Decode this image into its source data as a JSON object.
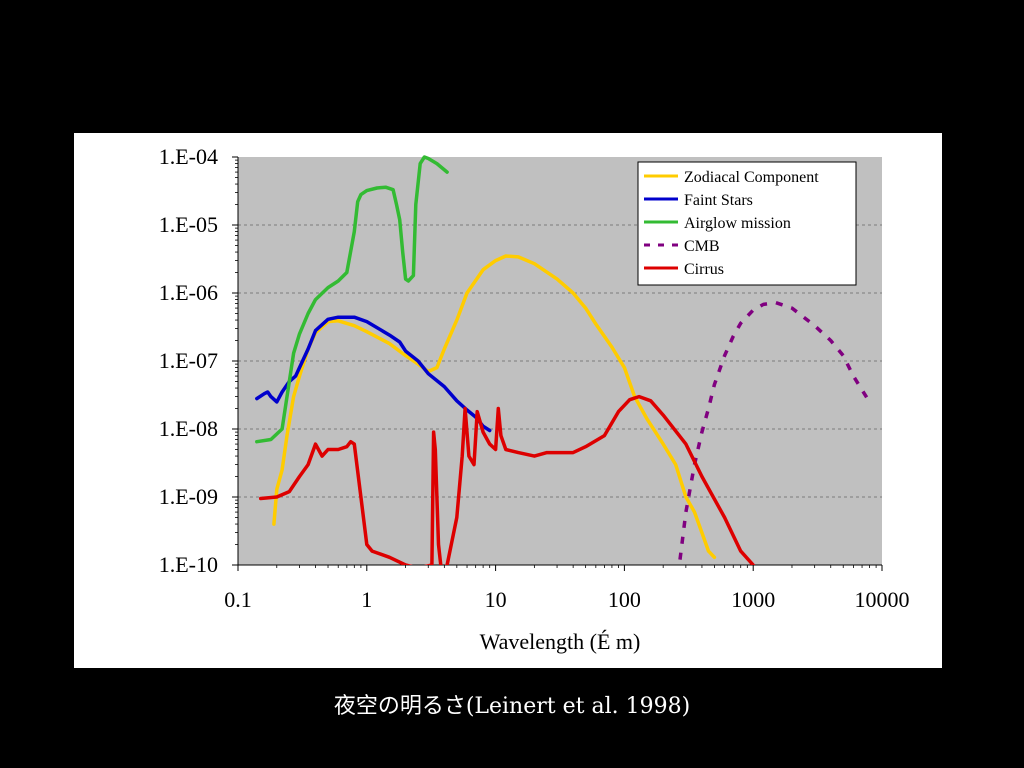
{
  "caption": "夜空の明るさ(Leinert et al. 1998)",
  "chart_data": {
    "type": "line",
    "xscale": "log",
    "yscale": "log",
    "xlim": [
      0.1,
      10000
    ],
    "ylim": [
      1e-10,
      0.0001
    ],
    "xlabel": "Wavelength (É m)",
    "ylabel": "",
    "x_tick_labels": [
      "0.1",
      "1",
      "10",
      "100",
      "1000",
      "10000"
    ],
    "y_tick_labels": [
      "1.E-04",
      "1.E-05",
      "1.E-06",
      "1.E-07",
      "1.E-08",
      "1.E-09",
      "1.E-10"
    ],
    "background": "#c0c0c0",
    "grid": true,
    "legend_position": "top-right",
    "series": [
      {
        "name": "Zodiacal Component",
        "color": "#ffcc00",
        "dash": "solid",
        "points": [
          [
            0.19,
            4e-10
          ],
          [
            0.2,
            1.3e-09
          ],
          [
            0.22,
            2.5e-09
          ],
          [
            0.24,
            8e-09
          ],
          [
            0.27,
            3e-08
          ],
          [
            0.3,
            6e-08
          ],
          [
            0.35,
            1.5e-07
          ],
          [
            0.4,
            2.6e-07
          ],
          [
            0.5,
            3.8e-07
          ],
          [
            0.6,
            3.9e-07
          ],
          [
            0.8,
            3.3e-07
          ],
          [
            1,
            2.7e-07
          ],
          [
            1.5,
            1.8e-07
          ],
          [
            2,
            1.2e-07
          ],
          [
            2.5,
            9e-08
          ],
          [
            3,
            7e-08
          ],
          [
            3.5,
            8e-08
          ],
          [
            4,
            1.5e-07
          ],
          [
            5,
            4e-07
          ],
          [
            6,
            1e-06
          ],
          [
            8,
            2.2e-06
          ],
          [
            10,
            3e-06
          ],
          [
            12,
            3.5e-06
          ],
          [
            15,
            3.4e-06
          ],
          [
            20,
            2.7e-06
          ],
          [
            30,
            1.6e-06
          ],
          [
            40,
            1e-06
          ],
          [
            50,
            6e-07
          ],
          [
            60,
            3.5e-07
          ],
          [
            80,
            1.6e-07
          ],
          [
            100,
            8e-08
          ],
          [
            120,
            3e-08
          ],
          [
            150,
            1.4e-08
          ],
          [
            200,
            6e-09
          ],
          [
            250,
            3e-09
          ],
          [
            300,
            1e-09
          ],
          [
            350,
            6e-10
          ],
          [
            400,
            3e-10
          ],
          [
            450,
            1.6e-10
          ],
          [
            500,
            1.3e-10
          ]
        ]
      },
      {
        "name": "Faint Stars",
        "color": "#0000cc",
        "dash": "solid",
        "points": [
          [
            0.14,
            2.8e-08
          ],
          [
            0.16,
            3.3e-08
          ],
          [
            0.17,
            3.5e-08
          ],
          [
            0.18,
            3e-08
          ],
          [
            0.2,
            2.5e-08
          ],
          [
            0.22,
            3.5e-08
          ],
          [
            0.25,
            5e-08
          ],
          [
            0.28,
            6e-08
          ],
          [
            0.3,
            8e-08
          ],
          [
            0.35,
            1.5e-07
          ],
          [
            0.4,
            2.8e-07
          ],
          [
            0.5,
            4.1e-07
          ],
          [
            0.6,
            4.4e-07
          ],
          [
            0.8,
            4.4e-07
          ],
          [
            1,
            3.8e-07
          ],
          [
            1.5,
            2.4e-07
          ],
          [
            1.8,
            1.9e-07
          ],
          [
            2,
            1.4e-07
          ],
          [
            2.5,
            1e-07
          ],
          [
            3,
            6.5e-08
          ],
          [
            4,
            4.2e-08
          ],
          [
            5,
            2.6e-08
          ],
          [
            6,
            1.9e-08
          ],
          [
            7,
            1.5e-08
          ],
          [
            8,
            1.1e-08
          ],
          [
            9,
            9.5e-09
          ]
        ]
      },
      {
        "name": "Airglow mission",
        "color": "#33bb33",
        "dash": "solid",
        "points": [
          [
            0.14,
            6.5e-09
          ],
          [
            0.18,
            7e-09
          ],
          [
            0.22,
            1e-08
          ],
          [
            0.25,
            5e-08
          ],
          [
            0.27,
            1.3e-07
          ],
          [
            0.3,
            2.5e-07
          ],
          [
            0.35,
            5e-07
          ],
          [
            0.4,
            8e-07
          ],
          [
            0.5,
            1.2e-06
          ],
          [
            0.6,
            1.5e-06
          ],
          [
            0.7,
            2e-06
          ],
          [
            0.8,
            8e-06
          ],
          [
            0.85,
            2.2e-05
          ],
          [
            0.9,
            2.8e-05
          ],
          [
            1,
            3.2e-05
          ],
          [
            1.2,
            3.5e-05
          ],
          [
            1.4,
            3.6e-05
          ],
          [
            1.6,
            3.3e-05
          ],
          [
            1.7,
            2e-05
          ],
          [
            1.8,
            1.2e-05
          ],
          [
            1.9,
            4e-06
          ],
          [
            2,
            1.6e-06
          ],
          [
            2.1,
            1.5e-06
          ],
          [
            2.3,
            1.8e-06
          ],
          [
            2.4,
            2e-05
          ],
          [
            2.6,
            8e-05
          ],
          [
            2.8,
            0.0001
          ],
          [
            3,
            9.5e-05
          ],
          [
            3.5,
            8e-05
          ],
          [
            4.2,
            6e-05
          ]
        ]
      },
      {
        "name": "CMB",
        "color": "#800080",
        "dash": "dashed",
        "points": [
          [
            270,
            1.2e-10
          ],
          [
            300,
            6e-10
          ],
          [
            350,
            3e-09
          ],
          [
            400,
            9e-09
          ],
          [
            450,
            2e-08
          ],
          [
            500,
            4.5e-08
          ],
          [
            600,
            1.2e-07
          ],
          [
            700,
            2.3e-07
          ],
          [
            800,
            3.6e-07
          ],
          [
            1000,
            5.6e-07
          ],
          [
            1200,
            6.8e-07
          ],
          [
            1500,
            7.2e-07
          ],
          [
            2000,
            6e-07
          ],
          [
            3000,
            3.3e-07
          ],
          [
            4000,
            2e-07
          ],
          [
            5000,
            1.2e-07
          ],
          [
            6000,
            6e-08
          ],
          [
            8000,
            2.5e-08
          ]
        ]
      },
      {
        "name": "Cirrus",
        "color": "#dd0000",
        "dash": "solid",
        "points": [
          [
            0.15,
            9.5e-10
          ],
          [
            0.2,
            1e-09
          ],
          [
            0.25,
            1.2e-09
          ],
          [
            0.3,
            2e-09
          ],
          [
            0.35,
            3e-09
          ],
          [
            0.4,
            6e-09
          ],
          [
            0.45,
            4e-09
          ],
          [
            0.5,
            5e-09
          ],
          [
            0.6,
            5e-09
          ],
          [
            0.7,
            5.5e-09
          ],
          [
            0.75,
            6.5e-09
          ],
          [
            0.8,
            6e-09
          ],
          [
            0.9,
            1e-09
          ],
          [
            1,
            2e-10
          ],
          [
            1.1,
            1.6e-10
          ],
          [
            1.5,
            1.3e-10
          ],
          [
            2,
            1e-10
          ],
          [
            2.5,
            9e-11
          ],
          [
            3.2,
            1e-10
          ],
          [
            3.3,
            9e-09
          ],
          [
            3.4,
            5e-09
          ],
          [
            3.6,
            2e-10
          ],
          [
            3.8,
            8e-11
          ],
          [
            4.2,
            1e-10
          ],
          [
            5,
            5e-10
          ],
          [
            5.5,
            4e-09
          ],
          [
            5.8,
            2e-08
          ],
          [
            6.2,
            4e-09
          ],
          [
            6.8,
            3e-09
          ],
          [
            7.2,
            1.8e-08
          ],
          [
            8,
            9e-09
          ],
          [
            9,
            6e-09
          ],
          [
            10,
            5e-09
          ],
          [
            10.5,
            2e-08
          ],
          [
            11,
            8e-09
          ],
          [
            12,
            5e-09
          ],
          [
            15,
            4.5e-09
          ],
          [
            20,
            4e-09
          ],
          [
            25,
            4.5e-09
          ],
          [
            40,
            4.5e-09
          ],
          [
            50,
            5.5e-09
          ],
          [
            70,
            8e-09
          ],
          [
            90,
            1.8e-08
          ],
          [
            110,
            2.7e-08
          ],
          [
            130,
            3e-08
          ],
          [
            160,
            2.6e-08
          ],
          [
            200,
            1.6e-08
          ],
          [
            300,
            6e-09
          ],
          [
            400,
            2e-09
          ],
          [
            600,
            5e-10
          ],
          [
            800,
            1.6e-10
          ],
          [
            1000,
            1e-10
          ]
        ]
      }
    ]
  }
}
